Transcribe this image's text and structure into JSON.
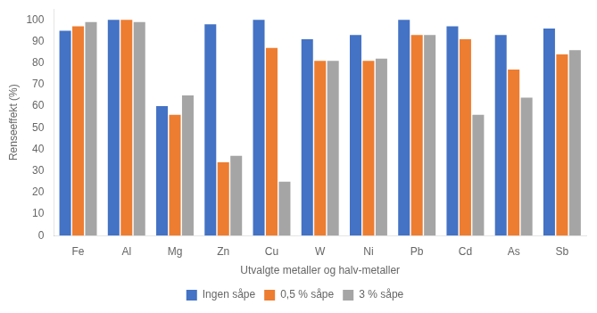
{
  "chart_data": {
    "type": "bar",
    "categories": [
      "Fe",
      "Al",
      "Mg",
      "Zn",
      "Cu",
      "W",
      "Ni",
      "Pb",
      "Cd",
      "As",
      "Sb"
    ],
    "series": [
      {
        "name": "Ingen såpe",
        "color": "#4472C4",
        "values": [
          95,
          100,
          60,
          98,
          100,
          91,
          93,
          100,
          97,
          93,
          96
        ]
      },
      {
        "name": "0,5 % såpe",
        "color": "#ED7D31",
        "values": [
          97,
          100,
          56,
          34,
          87,
          81,
          81,
          93,
          91,
          77,
          84
        ]
      },
      {
        "name": "3 % såpe",
        "color": "#A5A5A5",
        "values": [
          99,
          99,
          65,
          37,
          25,
          81,
          82,
          93,
          56,
          64,
          86
        ]
      }
    ],
    "xlabel": "Utvalgte metaller og halv-metaller",
    "ylabel": "Renseeffekt (%)",
    "ylim": [
      0,
      105
    ],
    "yticks": [
      0,
      10,
      20,
      30,
      40,
      50,
      60,
      70,
      80,
      90,
      100
    ],
    "grid": false,
    "legend": "bottom"
  }
}
